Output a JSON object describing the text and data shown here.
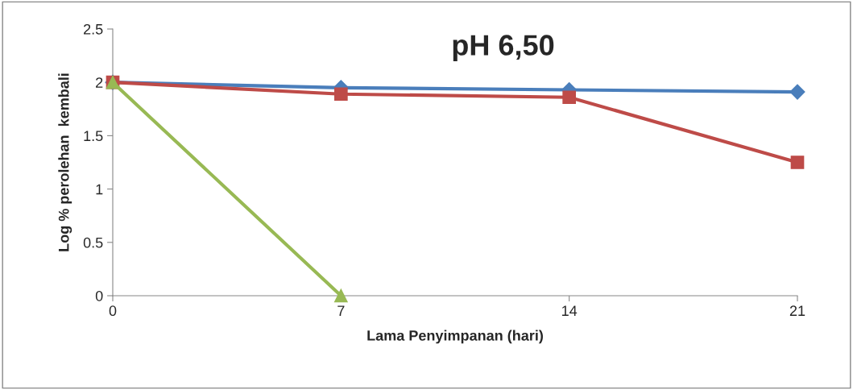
{
  "chart_data": {
    "type": "line",
    "title": "pH 6,50",
    "xlabel": "Lama Penyimpanan (hari)",
    "ylabel": "Log % perolehan  kembali",
    "x": [
      0,
      7,
      14,
      21
    ],
    "series": [
      {
        "color": "#4a7ebb",
        "marker": "diamond",
        "values": [
          2.0,
          1.95,
          1.93,
          1.91
        ]
      },
      {
        "color": "#be4b48",
        "marker": "square",
        "values": [
          2.0,
          1.89,
          1.86,
          1.25
        ]
      },
      {
        "color": "#98b954",
        "marker": "triangle",
        "values": [
          2.0,
          0,
          null,
          null
        ]
      }
    ],
    "xlim": [
      0,
      21
    ],
    "xticks": [
      0,
      7,
      14,
      21
    ],
    "ylim": [
      0,
      2.5
    ],
    "yticks": [
      0,
      0.5,
      1,
      1.5,
      2,
      2.5
    ],
    "grid": false,
    "legend": false
  }
}
